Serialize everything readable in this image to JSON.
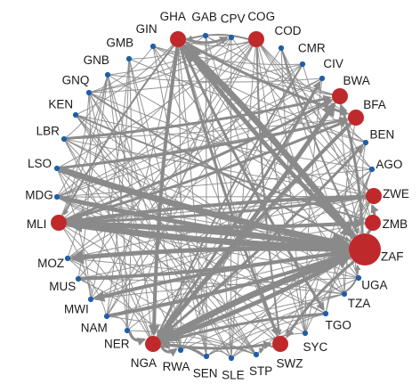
{
  "colors": {
    "edge": "#8a8a8a",
    "small_node": "#1f5fa8",
    "large_node": "#c0292b",
    "label": "#1a1a1a"
  },
  "nodes": [
    {
      "id": "GHA",
      "label": "GHA",
      "kind": "large"
    },
    {
      "id": "GAB",
      "label": "GAB",
      "kind": "small"
    },
    {
      "id": "CPV",
      "label": "CPV",
      "kind": "small"
    },
    {
      "id": "COG",
      "label": "COG",
      "kind": "large"
    },
    {
      "id": "COD",
      "label": "COD",
      "kind": "small"
    },
    {
      "id": "CMR",
      "label": "CMR",
      "kind": "small"
    },
    {
      "id": "CIV",
      "label": "CIV",
      "kind": "small"
    },
    {
      "id": "BWA",
      "label": "BWA",
      "kind": "large"
    },
    {
      "id": "BFA",
      "label": "BFA",
      "kind": "large"
    },
    {
      "id": "BEN",
      "label": "BEN",
      "kind": "small"
    },
    {
      "id": "AGO",
      "label": "AGO",
      "kind": "small"
    },
    {
      "id": "ZWE",
      "label": "ZWE",
      "kind": "large"
    },
    {
      "id": "ZMB",
      "label": "ZMB",
      "kind": "large"
    },
    {
      "id": "ZAF",
      "label": "ZAF",
      "kind": "hub"
    },
    {
      "id": "UGA",
      "label": "UGA",
      "kind": "small"
    },
    {
      "id": "TZA",
      "label": "TZA",
      "kind": "small"
    },
    {
      "id": "TGO",
      "label": "TGO",
      "kind": "small"
    },
    {
      "id": "SYC",
      "label": "SYC",
      "kind": "small"
    },
    {
      "id": "SWZ",
      "label": "SWZ",
      "kind": "large"
    },
    {
      "id": "STP",
      "label": "STP",
      "kind": "small"
    },
    {
      "id": "SLE",
      "label": "SLE",
      "kind": "small"
    },
    {
      "id": "SEN",
      "label": "SEN",
      "kind": "small"
    },
    {
      "id": "RWA",
      "label": "RWA",
      "kind": "small"
    },
    {
      "id": "NGA",
      "label": "NGA",
      "kind": "large"
    },
    {
      "id": "NER",
      "label": "NER",
      "kind": "small"
    },
    {
      "id": "NAM",
      "label": "NAM",
      "kind": "small"
    },
    {
      "id": "MWI",
      "label": "MWI",
      "kind": "small"
    },
    {
      "id": "MUS",
      "label": "MUS",
      "kind": "small"
    },
    {
      "id": "MOZ",
      "label": "MOZ",
      "kind": "small"
    },
    {
      "id": "MLI",
      "label": "MLI",
      "kind": "large"
    },
    {
      "id": "MDG",
      "label": "MDG",
      "kind": "small"
    },
    {
      "id": "LSO",
      "label": "LSO",
      "kind": "small"
    },
    {
      "id": "LBR",
      "label": "LBR",
      "kind": "small"
    },
    {
      "id": "KEN",
      "label": "KEN",
      "kind": "small"
    },
    {
      "id": "GNQ",
      "label": "GNQ",
      "kind": "small"
    },
    {
      "id": "GNB",
      "label": "GNB",
      "kind": "small"
    },
    {
      "id": "GMB",
      "label": "GMB",
      "kind": "small"
    },
    {
      "id": "GIN",
      "label": "GIN",
      "kind": "small"
    }
  ],
  "edges": [
    {
      "from": "LSO",
      "to": "ZAF",
      "weight": 7
    },
    {
      "from": "MLI",
      "to": "ZAF",
      "weight": 7
    },
    {
      "from": "ZAF",
      "to": "MLI",
      "weight": 6
    },
    {
      "from": "MDG",
      "to": "ZAF",
      "weight": 5
    },
    {
      "from": "ZAF",
      "to": "GHA",
      "weight": 7
    },
    {
      "from": "GHA",
      "to": "ZAF",
      "weight": 5
    },
    {
      "from": "ZAF",
      "to": "NGA",
      "weight": 7
    },
    {
      "from": "NGA",
      "to": "ZAF",
      "weight": 5
    },
    {
      "from": "ZAF",
      "to": "MOZ",
      "weight": 5
    },
    {
      "from": "MUS",
      "to": "ZAF",
      "weight": 4
    },
    {
      "from": "ZAF",
      "to": "MWI",
      "weight": 4
    },
    {
      "from": "NAM",
      "to": "ZAF",
      "weight": 4
    },
    {
      "from": "MLI",
      "to": "ZMB",
      "weight": 4
    },
    {
      "from": "ZWE",
      "to": "MLI",
      "weight": 4
    },
    {
      "from": "NGA",
      "to": "BWA",
      "weight": 5
    },
    {
      "from": "BFA",
      "to": "NGA",
      "weight": 4
    },
    {
      "from": "MLI",
      "to": "BFA",
      "weight": 3
    },
    {
      "from": "MLI",
      "to": "BWA",
      "weight": 3
    },
    {
      "from": "MLI",
      "to": "ZWE",
      "weight": 3
    },
    {
      "from": "GHA",
      "to": "BFA",
      "weight": 3
    },
    {
      "from": "GHA",
      "to": "CPV",
      "weight": 3
    },
    {
      "from": "COG",
      "to": "GHA",
      "weight": 2
    },
    {
      "from": "GHA",
      "to": "NGA",
      "weight": 4
    },
    {
      "from": "GHA",
      "to": "SWZ",
      "weight": 3
    },
    {
      "from": "NGA",
      "to": "SWZ",
      "weight": 3
    },
    {
      "from": "SWZ",
      "to": "STP",
      "weight": 2
    },
    {
      "from": "NGA",
      "to": "RWA",
      "weight": 3
    },
    {
      "from": "SEN",
      "to": "NGA",
      "weight": 3
    },
    {
      "from": "NER",
      "to": "NGA",
      "weight": 3
    },
    {
      "from": "NGA",
      "to": "CIV",
      "weight": 3
    },
    {
      "from": "NGA",
      "to": "BEN",
      "weight": 3
    },
    {
      "from": "GHA",
      "to": "TGO",
      "weight": 3
    },
    {
      "from": "LBR",
      "to": "BWA",
      "weight": 3
    },
    {
      "from": "LSO",
      "to": "BFA",
      "weight": 3
    },
    {
      "from": "KEN",
      "to": "ZMB",
      "weight": 2
    },
    {
      "from": "GNQ",
      "to": "ZAF",
      "weight": 2
    },
    {
      "from": "ZAF",
      "to": "BWA",
      "weight": 3
    },
    {
      "from": "ZAF",
      "to": "SWZ",
      "weight": 3
    },
    {
      "from": "ZAF",
      "to": "ZWE",
      "weight": 3
    },
    {
      "from": "COG",
      "to": "SWZ",
      "weight": 2
    },
    {
      "from": "COD",
      "to": "ZAF",
      "weight": 2
    },
    {
      "from": "CMR",
      "to": "NGA",
      "weight": 2
    },
    {
      "from": "GHA",
      "to": "MLI",
      "weight": 2
    },
    {
      "from": "TGO",
      "to": "NGA",
      "weight": 3
    },
    {
      "from": "TZA",
      "to": "ZAF",
      "weight": 2
    }
  ]
}
